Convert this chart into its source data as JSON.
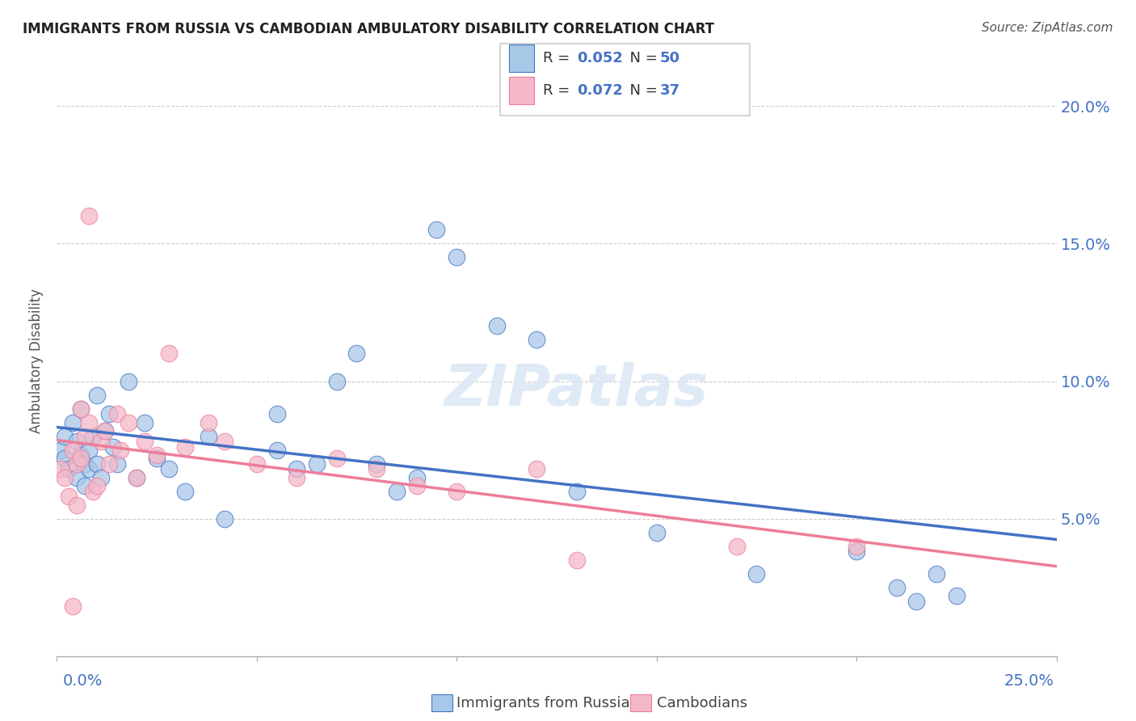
{
  "title": "IMMIGRANTS FROM RUSSIA VS CAMBODIAN AMBULATORY DISABILITY CORRELATION CHART",
  "source": "Source: ZipAtlas.com",
  "ylabel": "Ambulatory Disability",
  "legend_label1": "Immigrants from Russia",
  "legend_label2": "Cambodians",
  "color_blue": "#a8c8e8",
  "color_pink": "#f4b8c8",
  "line_blue": "#4472c4",
  "line_pink": "#ed7d9a",
  "text_blue": "#4472c4",
  "text_dark": "#222222",
  "russia_x": [
    0.001,
    0.002,
    0.002,
    0.003,
    0.004,
    0.005,
    0.005,
    0.006,
    0.006,
    0.007,
    0.007,
    0.008,
    0.008,
    0.009,
    0.01,
    0.01,
    0.011,
    0.012,
    0.013,
    0.014,
    0.015,
    0.018,
    0.02,
    0.022,
    0.025,
    0.028,
    0.032,
    0.038,
    0.042,
    0.055,
    0.065,
    0.075,
    0.085,
    0.095,
    0.1,
    0.11,
    0.13,
    0.15,
    0.175,
    0.2,
    0.21,
    0.215,
    0.22,
    0.225,
    0.055,
    0.06,
    0.07,
    0.08,
    0.09,
    0.12
  ],
  "russia_y": [
    0.075,
    0.08,
    0.072,
    0.068,
    0.085,
    0.078,
    0.065,
    0.09,
    0.073,
    0.07,
    0.062,
    0.075,
    0.068,
    0.08,
    0.095,
    0.07,
    0.065,
    0.082,
    0.088,
    0.076,
    0.07,
    0.1,
    0.065,
    0.085,
    0.072,
    0.068,
    0.06,
    0.08,
    0.05,
    0.088,
    0.07,
    0.11,
    0.06,
    0.155,
    0.145,
    0.12,
    0.06,
    0.045,
    0.03,
    0.038,
    0.025,
    0.02,
    0.03,
    0.022,
    0.075,
    0.068,
    0.1,
    0.07,
    0.065,
    0.115
  ],
  "cambodian_x": [
    0.001,
    0.002,
    0.003,
    0.004,
    0.005,
    0.005,
    0.006,
    0.007,
    0.008,
    0.009,
    0.01,
    0.011,
    0.012,
    0.013,
    0.015,
    0.016,
    0.018,
    0.02,
    0.022,
    0.025,
    0.028,
    0.032,
    0.038,
    0.042,
    0.05,
    0.06,
    0.07,
    0.08,
    0.09,
    0.1,
    0.12,
    0.13,
    0.17,
    0.2,
    0.008,
    0.006,
    0.004
  ],
  "cambodian_y": [
    0.068,
    0.065,
    0.058,
    0.075,
    0.07,
    0.055,
    0.072,
    0.08,
    0.085,
    0.06,
    0.062,
    0.078,
    0.082,
    0.07,
    0.088,
    0.075,
    0.085,
    0.065,
    0.078,
    0.073,
    0.11,
    0.076,
    0.085,
    0.078,
    0.07,
    0.065,
    0.072,
    0.068,
    0.062,
    0.06,
    0.068,
    0.035,
    0.04,
    0.04,
    0.16,
    0.09,
    0.018
  ],
  "xmin": 0.0,
  "xmax": 0.25,
  "ymin": 0.0,
  "ymax": 0.215,
  "background": "#ffffff",
  "grid_color": "#cccccc"
}
